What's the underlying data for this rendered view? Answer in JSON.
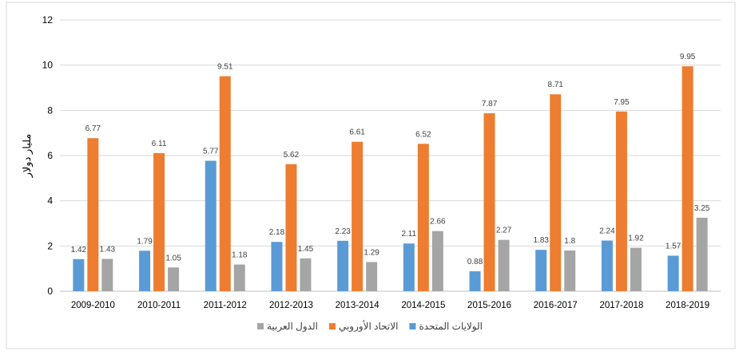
{
  "chart_data": {
    "type": "bar",
    "title": "",
    "xlabel": "",
    "ylabel": "مليار دولار",
    "ylim": [
      0,
      12
    ],
    "yticks": [
      0,
      2,
      4,
      6,
      8,
      10,
      12
    ],
    "grid": true,
    "legend_position": "bottom",
    "categories": [
      "2009-2010",
      "2010-2011",
      "2011-2012",
      "2012-2013",
      "2013-2014",
      "2014-2015",
      "2015-2016",
      "2016-2017",
      "2017-2018",
      "2018-2019"
    ],
    "series": [
      {
        "name": "الولايات المتحدة",
        "color": "#5B9BD5",
        "values": [
          1.42,
          1.79,
          5.77,
          2.18,
          2.23,
          2.11,
          0.88,
          1.83,
          2.24,
          1.57
        ]
      },
      {
        "name": "الاتحاد الأوروبي",
        "color": "#ED7D31",
        "values": [
          6.77,
          6.11,
          9.51,
          5.62,
          6.61,
          6.52,
          7.87,
          8.71,
          7.95,
          9.95
        ]
      },
      {
        "name": "الدول العربية",
        "color": "#A5A5A5",
        "values": [
          1.43,
          1.05,
          1.18,
          1.45,
          1.29,
          2.66,
          2.27,
          1.8,
          1.92,
          3.25
        ]
      }
    ]
  }
}
